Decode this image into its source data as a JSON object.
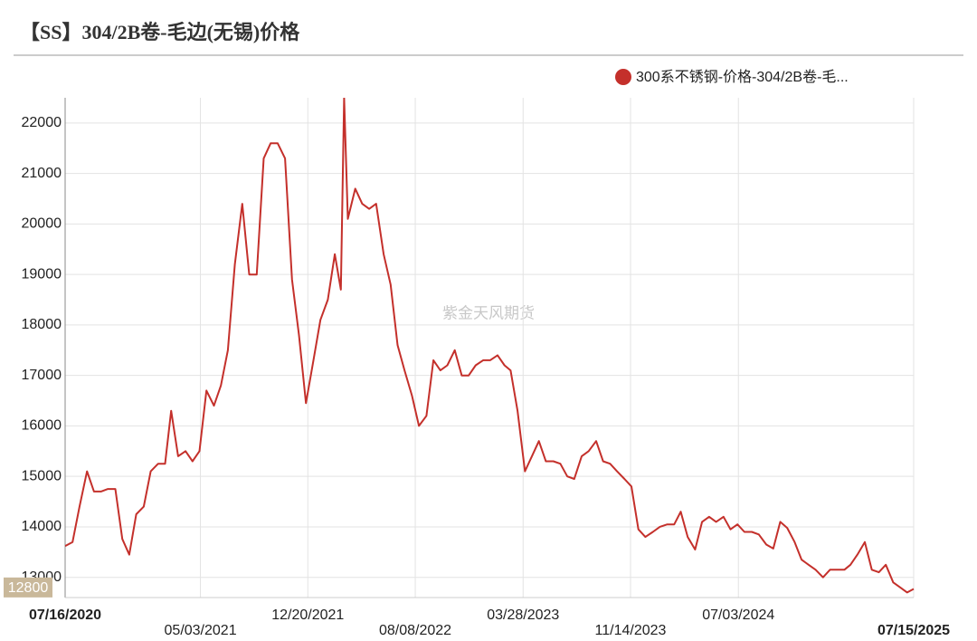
{
  "chart_data": {
    "type": "line",
    "title": "【SS】304/2B卷-毛边(无锡)价格",
    "watermark": "紫金天风期货",
    "x": [
      "2020-07-16",
      "2020-08-01",
      "2020-08-16",
      "2020-09-01",
      "2020-09-16",
      "2020-10-01",
      "2020-10-16",
      "2020-11-01",
      "2020-11-16",
      "2020-12-01",
      "2020-12-16",
      "2021-01-01",
      "2021-01-16",
      "2021-02-01",
      "2021-02-16",
      "2021-03-01",
      "2021-03-16",
      "2021-04-01",
      "2021-04-16",
      "2021-05-01",
      "2021-05-16",
      "2021-06-01",
      "2021-06-16",
      "2021-07-01",
      "2021-07-16",
      "2021-08-01",
      "2021-08-16",
      "2021-09-01",
      "2021-09-16",
      "2021-10-01",
      "2021-10-16",
      "2021-11-01",
      "2021-11-16",
      "2021-12-01",
      "2021-12-16",
      "2022-01-01",
      "2022-01-16",
      "2022-02-01",
      "2022-02-16",
      "2022-03-01",
      "2022-03-08",
      "2022-03-16",
      "2022-04-01",
      "2022-04-16",
      "2022-05-01",
      "2022-05-16",
      "2022-06-01",
      "2022-06-16",
      "2022-07-01",
      "2022-07-16",
      "2022-08-01",
      "2022-08-16",
      "2022-09-01",
      "2022-09-16",
      "2022-10-01",
      "2022-10-16",
      "2022-11-01",
      "2022-11-16",
      "2022-12-01",
      "2022-12-16",
      "2023-01-01",
      "2023-01-16",
      "2023-02-01",
      "2023-02-16",
      "2023-03-01",
      "2023-03-16",
      "2023-04-01",
      "2023-04-16",
      "2023-05-01",
      "2023-05-16",
      "2023-06-01",
      "2023-06-16",
      "2023-07-01",
      "2023-07-16",
      "2023-08-01",
      "2023-08-16",
      "2023-09-01",
      "2023-09-16",
      "2023-10-01",
      "2023-10-16",
      "2023-11-01",
      "2023-11-16",
      "2023-12-01",
      "2023-12-16",
      "2024-01-01",
      "2024-01-16",
      "2024-02-01",
      "2024-02-16",
      "2024-03-01",
      "2024-03-16",
      "2024-04-01",
      "2024-04-16",
      "2024-05-01",
      "2024-05-16",
      "2024-06-01",
      "2024-06-16",
      "2024-07-01",
      "2024-07-16",
      "2024-08-01",
      "2024-08-16",
      "2024-09-01",
      "2024-09-16",
      "2024-10-01",
      "2024-10-16",
      "2024-11-01",
      "2024-11-16",
      "2024-12-01",
      "2024-12-16",
      "2025-01-01",
      "2025-01-16",
      "2025-02-01",
      "2025-02-16",
      "2025-03-01",
      "2025-03-16",
      "2025-04-01",
      "2025-04-16",
      "2025-05-01",
      "2025-05-16",
      "2025-06-01",
      "2025-06-16",
      "2025-07-01",
      "2025-07-15"
    ],
    "series": [
      {
        "name": "300系不锈钢-价格-304/2B卷-毛...",
        "color": "#c4302b",
        "values": [
          13620,
          13700,
          14400,
          15100,
          14700,
          14700,
          14750,
          14750,
          13760,
          13450,
          14250,
          14400,
          15100,
          15250,
          15250,
          16300,
          15400,
          15500,
          15300,
          15500,
          16700,
          16400,
          16800,
          17500,
          19200,
          20400,
          19000,
          19000,
          21300,
          21600,
          21600,
          21300,
          18900,
          17800,
          16450,
          17300,
          18100,
          18500,
          19400,
          18700,
          22500,
          20100,
          20700,
          20400,
          20300,
          20400,
          19400,
          18800,
          17600,
          17100,
          16600,
          16000,
          16200,
          17300,
          17100,
          17200,
          17500,
          17000,
          17000,
          17200,
          17300,
          17300,
          17400,
          17200,
          17100,
          16300,
          15100,
          15400,
          15700,
          15300,
          15300,
          15250,
          15000,
          14950,
          15400,
          15500,
          15700,
          15300,
          15250,
          15100,
          14950,
          14800,
          13950,
          13800,
          13900,
          14000,
          14050,
          14050,
          14300,
          13800,
          13550,
          14100,
          14200,
          14100,
          14200,
          13950,
          14050,
          13900,
          13900,
          13850,
          13650,
          13570,
          14100,
          13980,
          13700,
          13350,
          13250,
          13150,
          13000,
          13150,
          13150,
          13150,
          13250,
          13450,
          13700,
          13150,
          13100,
          13250,
          12900,
          12800,
          12700,
          12770
        ]
      }
    ],
    "y_marker": 12800,
    "xlim": [
      "2020-07-16",
      "2025-07-15"
    ],
    "xticks": [
      {
        "value": "2020-07-16",
        "label": "07/16/2020"
      },
      {
        "value": "2021-05-03",
        "label": "05/03/2021"
      },
      {
        "value": "2021-12-20",
        "label": "12/20/2021"
      },
      {
        "value": "2022-08-08",
        "label": "08/08/2022"
      },
      {
        "value": "2023-03-28",
        "label": "03/28/2023"
      },
      {
        "value": "2023-11-14",
        "label": "11/14/2023"
      },
      {
        "value": "2024-07-03",
        "label": "07/03/2024"
      },
      {
        "value": "2025-07-15",
        "label": "07/15/2025"
      }
    ],
    "ylim": [
      12600,
      22500
    ],
    "yticks": [
      13000,
      14000,
      15000,
      16000,
      17000,
      18000,
      19000,
      20000,
      21000,
      22000
    ],
    "grid": true
  }
}
